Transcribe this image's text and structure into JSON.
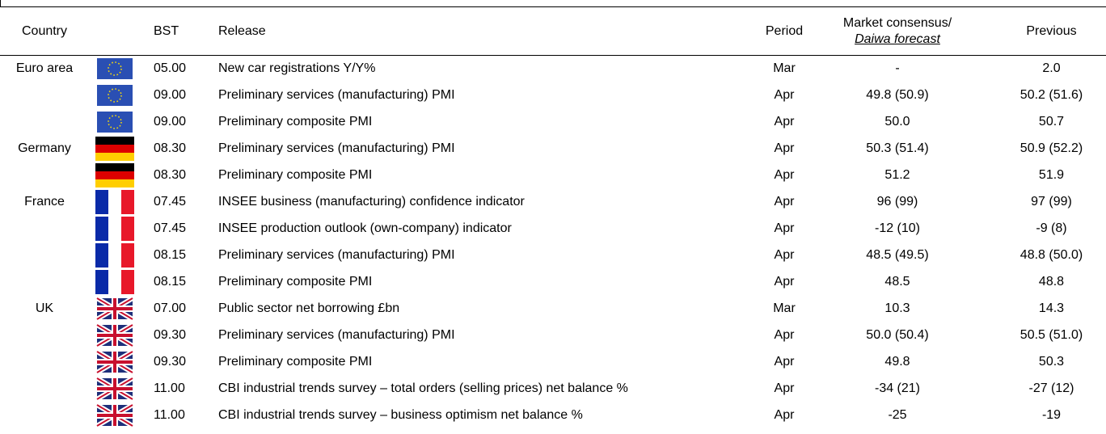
{
  "header": {
    "country": "Country",
    "bst": "BST",
    "release": "Release",
    "period": "Period",
    "consensus": "Market consensus/",
    "forecast": "Daiwa forecast",
    "previous": "Previous"
  },
  "table": {
    "rows": [
      {
        "country": "Euro area",
        "bst": "05.00",
        "release": "New car registrations Y/Y%",
        "period": "Mar",
        "consensus": "-",
        "previous": "2.0"
      },
      {
        "bst": "09.00",
        "release": "Preliminary services (manufacturing) PMI",
        "period": "Apr",
        "consensus": "49.8 (50.9)",
        "previous": "50.2 (51.6)"
      },
      {
        "bst": "09.00",
        "release": "Preliminary composite PMI",
        "period": "Apr",
        "consensus": "50.0",
        "previous": "50.7"
      },
      {
        "country": "Germany",
        "bst": "08.30",
        "release": "Preliminary services (manufacturing) PMI",
        "period": "Apr",
        "consensus": "50.3 (51.4)",
        "previous": "50.9 (52.2)"
      },
      {
        "bst": "08.30",
        "release": "Preliminary composite PMI",
        "period": "Apr",
        "consensus": "51.2",
        "previous": "51.9"
      },
      {
        "country": "France",
        "bst": "07.45",
        "release": "INSEE business (manufacturing) confidence indicator",
        "period": "Apr",
        "consensus": "96 (99)",
        "previous": "97 (99)"
      },
      {
        "bst": "07.45",
        "release": "INSEE production outlook (own-company) indicator",
        "period": "Apr",
        "consensus": "-12 (10)",
        "previous": "-9 (8)"
      },
      {
        "bst": "08.15",
        "release": "Preliminary services (manufacturing) PMI",
        "period": "Apr",
        "consensus": "48.5 (49.5)",
        "previous": "48.8 (50.0)"
      },
      {
        "bst": "08.15",
        "release": "Preliminary composite PMI",
        "period": "Apr",
        "consensus": "48.5",
        "previous": "48.8"
      },
      {
        "country": "UK",
        "bst": "07.00",
        "release": "Public sector net borrowing £bn",
        "period": "Mar",
        "consensus": "10.3",
        "previous": "14.3"
      },
      {
        "bst": "09.30",
        "release": "Preliminary services (manufacturing) PMI",
        "period": "Apr",
        "consensus": "50.0 (50.4)",
        "previous": "50.5 (51.0)"
      },
      {
        "bst": "09.30",
        "release": "Preliminary composite PMI",
        "period": "Apr",
        "consensus": "49.8",
        "previous": "50.3"
      },
      {
        "bst": "11.00",
        "release": "CBI industrial trends survey – total orders (selling prices) net balance %",
        "period": "Apr",
        "consensus": "-34 (21)",
        "previous": "-27 (12)"
      },
      {
        "bst": "11.00",
        "release": "CBI industrial trends survey – business optimism net balance %",
        "period": "Apr",
        "consensus": "-25",
        "previous": "-19"
      }
    ]
  }
}
